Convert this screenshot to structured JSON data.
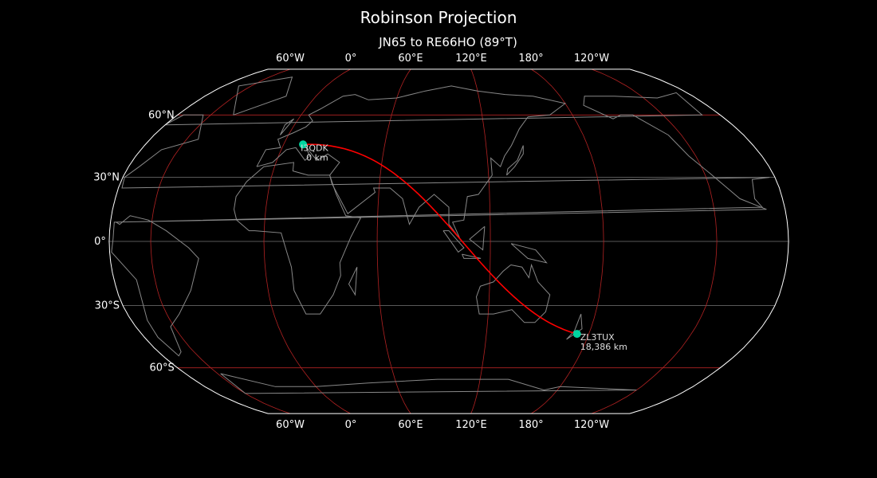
{
  "title": "Robinson Projection",
  "subtitle": "JN65 to RE66HO (89°T)",
  "colors": {
    "background": "#000000",
    "path": "#ff0000",
    "marker": "#00d4a0",
    "graticule_meridian": "#b22222",
    "graticule_parallel": "#777777",
    "coastline": "#888888",
    "outline": "#ffffff"
  },
  "map_data": {
    "projection": "robinson",
    "central_longitude": 98,
    "lon_tick_labels": [
      "60°W",
      "0°",
      "60°E",
      "120°E",
      "180°",
      "120°W"
    ],
    "lat_tick_labels": {
      "60N": "60°N",
      "30N": "30°N",
      "0": "0°",
      "30S": "30°S",
      "60S": "60°S"
    },
    "start": {
      "call": "I3QDK",
      "distance": "0 km",
      "lat": 45.5,
      "lon": 11.5
    },
    "end": {
      "call": "ZL3TUX",
      "distance": "18,386 km",
      "lat": -43.4,
      "lon": 173.1
    }
  }
}
